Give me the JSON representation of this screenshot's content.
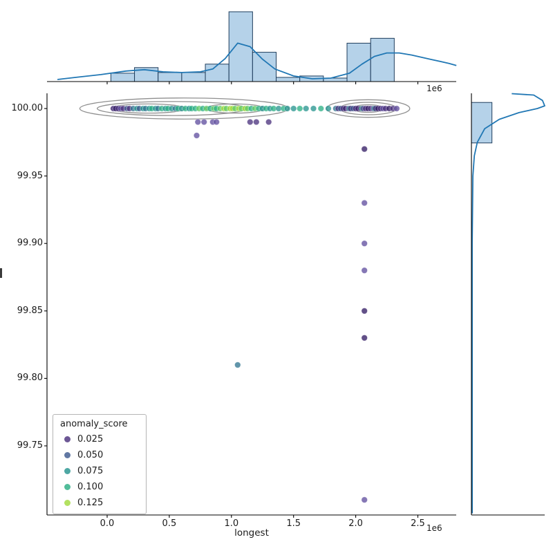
{
  "figure": {
    "xlabel": "longest",
    "x_offset_top": "1e6",
    "x_offset_bottom": "1e6",
    "x_tick_labels": [
      "0.0",
      "0.5",
      "1.0",
      "1.5",
      "2.0",
      "2.5"
    ],
    "y_tick_labels": [
      "100.00",
      "99.95",
      "99.90",
      "99.85",
      "99.80",
      "99.75"
    ]
  },
  "legend": {
    "title": "anomaly_score",
    "entries": [
      {
        "label": "0.025",
        "color": "#472d7b"
      },
      {
        "label": "0.050",
        "color": "#39568c"
      },
      {
        "label": "0.075",
        "color": "#21918c"
      },
      {
        "label": "0.100",
        "color": "#27ad81"
      },
      {
        "label": "0.125",
        "color": "#a0da39"
      }
    ]
  },
  "colors": {
    "hist_fill": "#a3c7e3",
    "hist_edge": "#1f3d5c",
    "kde_line": "#2077b4",
    "contour": "#8f8f8f",
    "axis": "#000000"
  },
  "chart_data": {
    "type": "scatter",
    "title": "",
    "xlabel": "longest",
    "ylabel": "",
    "x_scale": "1e6",
    "xlim_1e6": [
      -0.48,
      2.81
    ],
    "ylim": [
      99.698,
      100.011
    ],
    "x_ticks_1e6": [
      0.0,
      0.5,
      1.0,
      1.5,
      2.0,
      2.5
    ],
    "y_ticks": [
      100.0,
      99.95,
      99.9,
      99.85,
      99.8,
      99.75
    ],
    "legend_title": "anomaly_score",
    "hue": "anomaly_score",
    "palette": [
      "#2d1560",
      "#472d7b",
      "#5c4a9c",
      "#39568c",
      "#2c728e",
      "#21918c",
      "#27ad81",
      "#5ec962",
      "#a0da39"
    ],
    "points": [
      [
        0.05,
        100,
        1
      ],
      [
        0.07,
        100,
        0
      ],
      [
        0.09,
        100,
        1
      ],
      [
        0.11,
        100,
        2
      ],
      [
        0.13,
        100,
        1
      ],
      [
        0.16,
        100,
        3
      ],
      [
        0.18,
        100,
        1
      ],
      [
        0.21,
        100,
        4
      ],
      [
        0.24,
        100,
        5
      ],
      [
        0.26,
        100,
        3
      ],
      [
        0.29,
        100,
        5
      ],
      [
        0.31,
        100,
        4
      ],
      [
        0.34,
        100,
        5
      ],
      [
        0.36,
        100,
        6
      ],
      [
        0.39,
        100,
        5
      ],
      [
        0.41,
        100,
        4
      ],
      [
        0.44,
        100,
        6
      ],
      [
        0.47,
        100,
        5
      ],
      [
        0.49,
        100,
        6
      ],
      [
        0.52,
        100,
        5
      ],
      [
        0.55,
        100,
        4
      ],
      [
        0.57,
        100,
        6
      ],
      [
        0.6,
        100,
        5
      ],
      [
        0.63,
        100,
        6
      ],
      [
        0.66,
        100,
        5
      ],
      [
        0.68,
        100,
        6
      ],
      [
        0.71,
        100,
        6
      ],
      [
        0.74,
        100,
        7
      ],
      [
        0.77,
        100,
        6
      ],
      [
        0.8,
        100,
        7
      ],
      [
        0.83,
        100,
        6
      ],
      [
        0.86,
        100,
        7
      ],
      [
        0.88,
        100,
        6
      ],
      [
        0.91,
        100,
        7
      ],
      [
        0.94,
        100,
        8
      ],
      [
        0.96,
        100,
        7
      ],
      [
        0.99,
        100,
        8
      ],
      [
        1.01,
        100,
        8
      ],
      [
        1.03,
        100,
        7
      ],
      [
        1.06,
        100,
        8
      ],
      [
        1.08,
        100,
        7
      ],
      [
        1.11,
        100,
        8
      ],
      [
        1.13,
        100,
        7
      ],
      [
        1.16,
        100,
        6
      ],
      [
        1.19,
        100,
        7
      ],
      [
        1.22,
        100,
        6
      ],
      [
        1.25,
        100,
        5
      ],
      [
        1.28,
        100,
        6
      ],
      [
        1.31,
        100,
        5
      ],
      [
        1.34,
        100,
        6
      ],
      [
        1.38,
        100,
        5
      ],
      [
        1.42,
        100,
        6
      ],
      [
        1.45,
        100,
        5
      ],
      [
        1.5,
        100,
        5
      ],
      [
        1.55,
        100,
        6
      ],
      [
        1.6,
        100,
        5
      ],
      [
        1.66,
        100,
        5
      ],
      [
        1.72,
        100,
        6
      ],
      [
        1.78,
        100,
        5
      ],
      [
        1.84,
        100,
        4
      ],
      [
        1.86,
        100,
        1
      ],
      [
        1.88,
        100,
        3
      ],
      [
        1.9,
        100,
        1
      ],
      [
        1.92,
        100,
        0
      ],
      [
        1.94,
        100,
        2
      ],
      [
        1.95,
        100,
        5
      ],
      [
        1.96,
        100,
        1
      ],
      [
        1.98,
        100,
        3
      ],
      [
        2.0,
        100,
        1
      ],
      [
        2.02,
        100,
        0
      ],
      [
        2.04,
        100,
        1
      ],
      [
        2.05,
        100,
        6
      ],
      [
        2.06,
        100,
        2
      ],
      [
        2.08,
        100,
        1
      ],
      [
        2.1,
        100,
        0
      ],
      [
        2.12,
        100,
        1
      ],
      [
        2.14,
        100,
        2
      ],
      [
        2.15,
        100,
        5
      ],
      [
        2.16,
        100,
        1
      ],
      [
        2.18,
        100,
        0
      ],
      [
        2.2,
        100,
        1
      ],
      [
        2.22,
        100,
        2
      ],
      [
        2.24,
        100,
        1
      ],
      [
        2.27,
        100,
        0
      ],
      [
        2.3,
        100,
        1
      ],
      [
        2.33,
        100,
        2
      ],
      [
        0.73,
        99.99,
        2
      ],
      [
        0.78,
        99.99,
        2
      ],
      [
        0.85,
        99.99,
        2
      ],
      [
        0.88,
        99.99,
        2
      ],
      [
        1.15,
        99.99,
        1
      ],
      [
        1.2,
        99.99,
        1
      ],
      [
        1.3,
        99.99,
        1
      ],
      [
        0.72,
        99.98,
        2
      ],
      [
        2.07,
        99.97,
        0
      ],
      [
        2.07,
        99.93,
        2
      ],
      [
        2.07,
        99.9,
        2
      ],
      [
        2.07,
        99.88,
        2
      ],
      [
        2.07,
        99.85,
        0
      ],
      [
        2.07,
        99.83,
        0
      ],
      [
        2.07,
        99.71,
        2
      ],
      [
        1.05,
        99.81,
        4
      ]
    ],
    "contours": [
      [
        0.62,
        100.0,
        0.84,
        0.0078
      ],
      [
        0.52,
        100.0,
        0.6,
        0.0052
      ],
      [
        0.33,
        100.0,
        0.3,
        0.0034
      ],
      [
        1.03,
        100.0,
        0.235,
        0.0034
      ],
      [
        2.1,
        100.0,
        0.335,
        0.0065
      ],
      [
        2.1,
        100.0,
        0.23,
        0.0046
      ],
      [
        2.1,
        100.0,
        0.125,
        0.0028
      ]
    ],
    "top_hist": {
      "bin_start_1e6": 0.03,
      "bin_width_1e6": 0.19,
      "heights_frac": [
        0.12,
        0.2,
        0.13,
        0.13,
        0.25,
        1.0,
        0.42,
        0.06,
        0.08,
        0.05,
        0.55,
        0.62
      ]
    },
    "top_kde": [
      [
        -0.4,
        0.03
      ],
      [
        -0.25,
        0.06
      ],
      [
        -0.05,
        0.1
      ],
      [
        0.15,
        0.15
      ],
      [
        0.3,
        0.17
      ],
      [
        0.45,
        0.14
      ],
      [
        0.6,
        0.13
      ],
      [
        0.75,
        0.14
      ],
      [
        0.85,
        0.18
      ],
      [
        0.95,
        0.33
      ],
      [
        1.05,
        0.55
      ],
      [
        1.15,
        0.5
      ],
      [
        1.25,
        0.32
      ],
      [
        1.35,
        0.18
      ],
      [
        1.5,
        0.08
      ],
      [
        1.65,
        0.04
      ],
      [
        1.8,
        0.05
      ],
      [
        1.95,
        0.12
      ],
      [
        2.05,
        0.25
      ],
      [
        2.15,
        0.36
      ],
      [
        2.25,
        0.41
      ],
      [
        2.35,
        0.41
      ],
      [
        2.45,
        0.38
      ],
      [
        2.6,
        0.32
      ],
      [
        2.75,
        0.26
      ],
      [
        2.81,
        0.23
      ]
    ],
    "right_hist": [
      {
        "y0": 99.9745,
        "y1": 100.0045,
        "frac": 0.28
      }
    ],
    "right_kde": [
      [
        0.01,
        99.7
      ],
      [
        0.01,
        99.9
      ],
      [
        0.02,
        99.95
      ],
      [
        0.04,
        99.965
      ],
      [
        0.08,
        99.975
      ],
      [
        0.18,
        99.985
      ],
      [
        0.38,
        99.992
      ],
      [
        0.65,
        99.997
      ],
      [
        0.9,
        100.0
      ],
      [
        1.0,
        100.002
      ],
      [
        0.97,
        100.006
      ],
      [
        0.85,
        100.01
      ],
      [
        0.55,
        100.011
      ]
    ]
  }
}
